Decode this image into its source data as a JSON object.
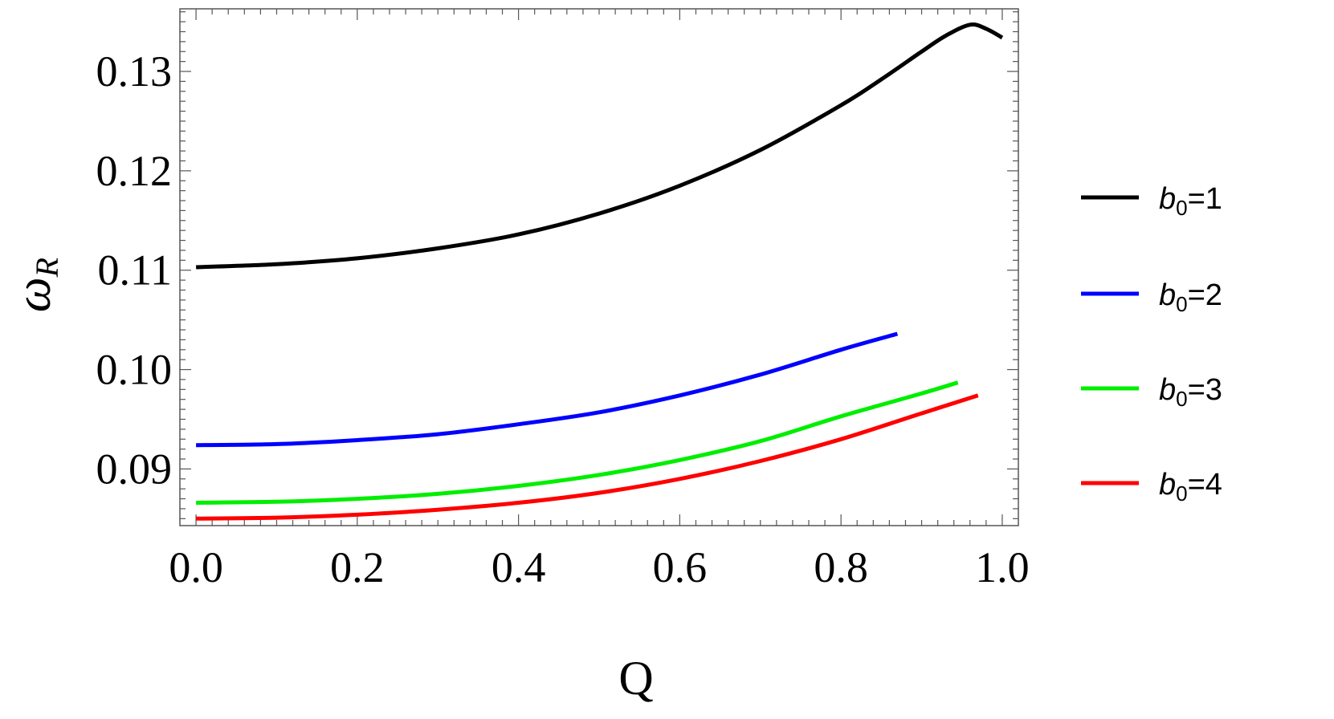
{
  "chart_data": {
    "type": "line",
    "title": "",
    "xlabel": "Q",
    "ylabel": {
      "symbol": "ω",
      "subscript": "R"
    },
    "xlim": [
      -0.02,
      1.02
    ],
    "ylim": [
      0.0843,
      0.1363
    ],
    "x_ticks": [
      0.0,
      0.2,
      0.4,
      0.6,
      0.8,
      1.0
    ],
    "x_tick_labels": [
      "0.0",
      "0.2",
      "0.4",
      "0.6",
      "0.8",
      "1.0"
    ],
    "y_ticks": [
      0.09,
      0.1,
      0.11,
      0.12,
      0.13
    ],
    "y_tick_labels": [
      "0.09",
      "0.10",
      "0.11",
      "0.12",
      "0.13"
    ],
    "grid": false,
    "legend_position": "right",
    "series": [
      {
        "name": "b0=1",
        "legend": {
          "symbol": "b",
          "subscript": "0",
          "suffix": "=1"
        },
        "color": "#000000",
        "x": [
          0.0,
          0.1,
          0.2,
          0.3,
          0.4,
          0.5,
          0.6,
          0.7,
          0.8,
          0.85,
          0.9,
          0.93,
          0.96,
          0.98,
          1.0
        ],
        "y": [
          0.1103,
          0.1106,
          0.1112,
          0.1122,
          0.1136,
          0.1157,
          0.1185,
          0.1221,
          0.1266,
          0.1292,
          0.132,
          0.1336,
          0.1347,
          0.1343,
          0.1334
        ]
      },
      {
        "name": "b0=2",
        "legend": {
          "symbol": "b",
          "subscript": "0",
          "suffix": "=2"
        },
        "color": "#0000ff",
        "x": [
          0.0,
          0.1,
          0.2,
          0.3,
          0.4,
          0.5,
          0.6,
          0.7,
          0.8,
          0.87
        ],
        "y": [
          0.0924,
          0.0925,
          0.0929,
          0.0935,
          0.0945,
          0.0957,
          0.0974,
          0.0995,
          0.102,
          0.1036
        ]
      },
      {
        "name": "b0=3",
        "legend": {
          "symbol": "b",
          "subscript": "0",
          "suffix": "=3"
        },
        "color": "#00ee00",
        "x": [
          0.0,
          0.1,
          0.2,
          0.3,
          0.4,
          0.5,
          0.6,
          0.7,
          0.8,
          0.9,
          0.945
        ],
        "y": [
          0.0866,
          0.0867,
          0.087,
          0.0875,
          0.0883,
          0.0894,
          0.0909,
          0.0928,
          0.0953,
          0.0976,
          0.0987
        ]
      },
      {
        "name": "b0=4",
        "legend": {
          "symbol": "b",
          "subscript": "0",
          "suffix": "=4"
        },
        "color": "#ff0000",
        "x": [
          0.0,
          0.1,
          0.2,
          0.3,
          0.4,
          0.5,
          0.6,
          0.7,
          0.8,
          0.9,
          0.97
        ],
        "y": [
          0.085,
          0.0851,
          0.0854,
          0.0859,
          0.0866,
          0.0876,
          0.089,
          0.0908,
          0.093,
          0.0956,
          0.0974
        ]
      }
    ]
  }
}
